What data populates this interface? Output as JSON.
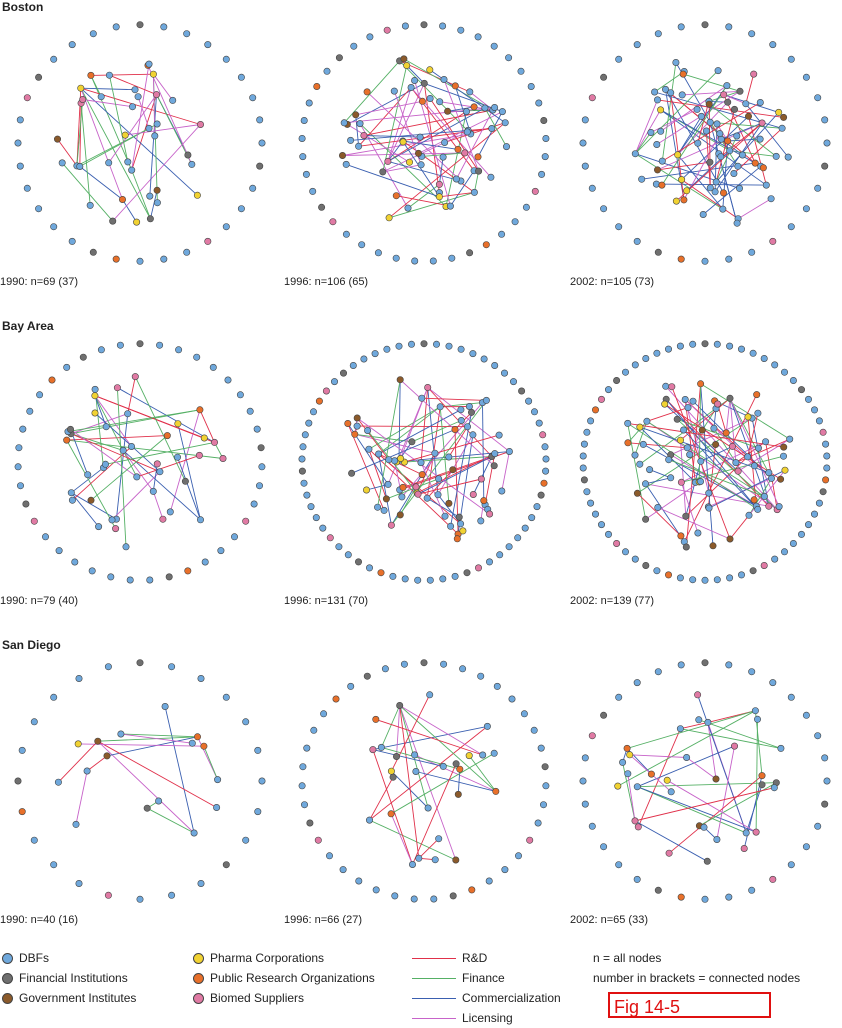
{
  "node_colors": {
    "dbf": "#6fa8dc",
    "financial": "#6f6f6f",
    "government": "#8b5a2b",
    "pharma": "#f1d232",
    "pro": "#e8702a",
    "biomed": "#e07aa4"
  },
  "tie_colors": {
    "rd": "#e0304a",
    "finance": "#55b065",
    "commercialization": "#3a5fb0",
    "licensing": "#c763c9"
  },
  "regions": [
    {
      "title": "Boston",
      "panels": [
        {
          "caption": "1990: n=69 (37)",
          "n": 69,
          "connected": 37
        },
        {
          "caption": "1996: n=106 (65)",
          "n": 106,
          "connected": 65
        },
        {
          "caption": "2002: n=105 (73)",
          "n": 105,
          "connected": 73
        }
      ]
    },
    {
      "title": "Bay Area",
      "panels": [
        {
          "caption": "1990: n=79 (40)",
          "n": 79,
          "connected": 40
        },
        {
          "caption": "1996: n=131 (70)",
          "n": 131,
          "connected": 70
        },
        {
          "caption": "2002: n=139 (77)",
          "n": 139,
          "connected": 77
        }
      ]
    },
    {
      "title": "San Diego",
      "panels": [
        {
          "caption": "1990: n=40 (16)",
          "n": 40,
          "connected": 16
        },
        {
          "caption": "1996: n=66 (27)",
          "n": 66,
          "connected": 27
        },
        {
          "caption": "2002: n=65 (33)",
          "n": 65,
          "connected": 33
        }
      ]
    }
  ],
  "legend": {
    "nodes": [
      {
        "label": "DBFs",
        "color_key": "dbf"
      },
      {
        "label": "Financial Institutions",
        "color_key": "financial"
      },
      {
        "label": "Government Institutes",
        "color_key": "government"
      },
      {
        "label": "Pharma Corporations",
        "color_key": "pharma"
      },
      {
        "label": "Public Research Organizations",
        "color_key": "pro"
      },
      {
        "label": "Biomed Suppliers",
        "color_key": "biomed"
      }
    ],
    "ties": [
      {
        "label": "R&D",
        "color_key": "rd"
      },
      {
        "label": "Finance",
        "color_key": "finance"
      },
      {
        "label": "Commercialization",
        "color_key": "commercialization"
      },
      {
        "label": "Licensing",
        "color_key": "licensing"
      }
    ],
    "notes": [
      "n = all nodes",
      "number in brackets = connected nodes"
    ]
  },
  "figure_label": "Fig 14-5"
}
